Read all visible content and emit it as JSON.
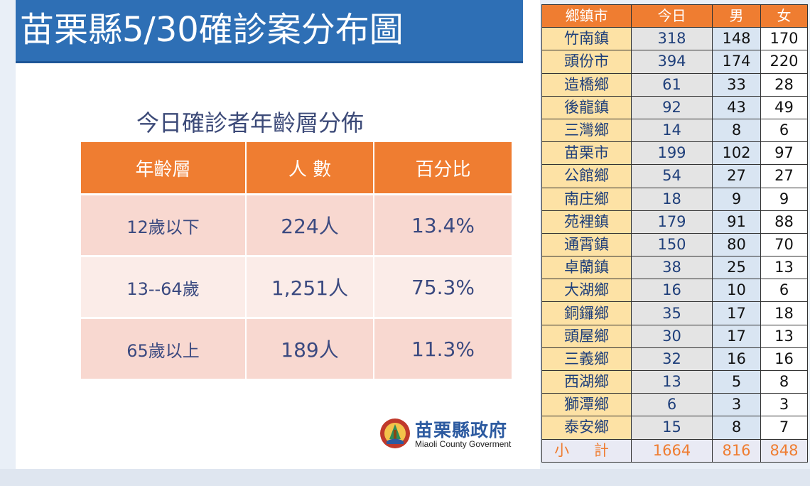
{
  "title": "苗栗縣5/30確診案分布圖",
  "age_section": {
    "heading": "今日確診者年齡層分佈",
    "columns": [
      "年齡層",
      "人 數",
      "百分比"
    ],
    "rows": [
      {
        "group": "12歲以下",
        "count": "224人",
        "percent": "13.4%"
      },
      {
        "group": "13--64歲",
        "count": "1,251人",
        "percent": "75.3%"
      },
      {
        "group": "65歲以上",
        "count": "189人",
        "percent": "11.3%"
      }
    ]
  },
  "logo": {
    "name_zh": "苗栗縣政府",
    "name_en": "Miaoli County Goverment"
  },
  "town_table": {
    "columns": [
      "鄉鎮市",
      "今日",
      "男",
      "女"
    ],
    "rows": [
      {
        "town": "竹南鎮",
        "today": "318",
        "male": "148",
        "female": "170"
      },
      {
        "town": "頭份市",
        "today": "394",
        "male": "174",
        "female": "220"
      },
      {
        "town": "造橋鄉",
        "today": "61",
        "male": "33",
        "female": "28"
      },
      {
        "town": "後龍鎮",
        "today": "92",
        "male": "43",
        "female": "49"
      },
      {
        "town": "三灣鄉",
        "today": "14",
        "male": "8",
        "female": "6"
      },
      {
        "town": "苗栗市",
        "today": "199",
        "male": "102",
        "female": "97"
      },
      {
        "town": "公館鄉",
        "today": "54",
        "male": "27",
        "female": "27"
      },
      {
        "town": "南庄鄉",
        "today": "18",
        "male": "9",
        "female": "9"
      },
      {
        "town": "苑裡鎮",
        "today": "179",
        "male": "91",
        "female": "88"
      },
      {
        "town": "通霄鎮",
        "today": "150",
        "male": "80",
        "female": "70"
      },
      {
        "town": "卓蘭鎮",
        "today": "38",
        "male": "25",
        "female": "13"
      },
      {
        "town": "大湖鄉",
        "today": "16",
        "male": "10",
        "female": "6"
      },
      {
        "town": "銅鑼鄉",
        "today": "35",
        "male": "17",
        "female": "18"
      },
      {
        "town": "頭屋鄉",
        "today": "30",
        "male": "17",
        "female": "13"
      },
      {
        "town": "三義鄉",
        "today": "32",
        "male": "16",
        "female": "16"
      },
      {
        "town": "西湖鄉",
        "today": "13",
        "male": "5",
        "female": "8"
      },
      {
        "town": "獅潭鄉",
        "today": "6",
        "male": "3",
        "female": "3"
      },
      {
        "town": "泰安鄉",
        "today": "15",
        "male": "8",
        "female": "7"
      }
    ],
    "total": {
      "label": "小 計",
      "today": "1664",
      "male": "816",
      "female": "848"
    }
  },
  "colors": {
    "title_bar": "#2e6fb5",
    "header_orange": "#ef7d31",
    "row_pink": "#f8d8d0",
    "town_yellow": "#fde2a5",
    "male_blue": "#d9e5f2"
  }
}
